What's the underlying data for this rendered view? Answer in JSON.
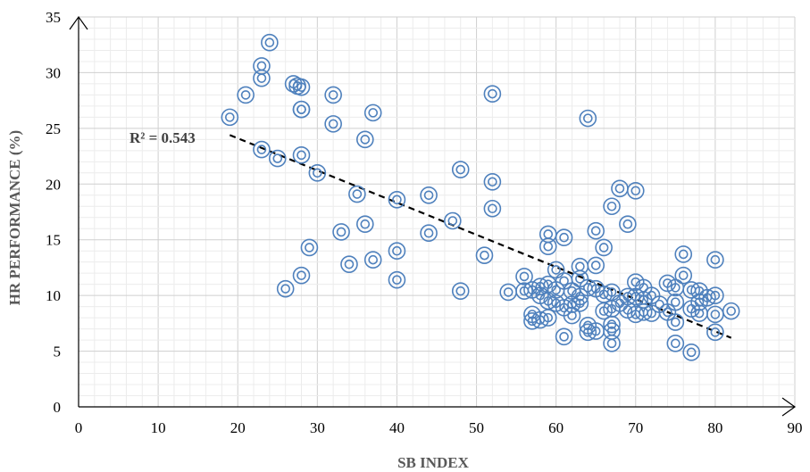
{
  "chart_data": {
    "type": "scatter",
    "title": "",
    "xlabel": "SB INDEX",
    "ylabel": "HR PERFORMANCE (%)",
    "xlim": [
      0,
      90
    ],
    "ylim": [
      0,
      35
    ],
    "x_ticks": [
      "0",
      "10",
      "20",
      "30",
      "40",
      "50",
      "60",
      "70",
      "80",
      "90"
    ],
    "y_ticks": [
      "0",
      "5",
      "10",
      "15",
      "20",
      "25",
      "30",
      "35"
    ],
    "grid": "major and minor gridlines",
    "marker_color": "#4f81bd",
    "trendline": {
      "type": "linear",
      "x": [
        19,
        82
      ],
      "y": [
        24.4,
        6.2
      ],
      "style": "dashed",
      "color": "#000000"
    },
    "annotation": "R² = 0.543",
    "points": [
      [
        19,
        26
      ],
      [
        21,
        28
      ],
      [
        23,
        30.6
      ],
      [
        23,
        29.5
      ],
      [
        24,
        32.7
      ],
      [
        23,
        23.1
      ],
      [
        25,
        22.3
      ],
      [
        26,
        10.6
      ],
      [
        27,
        29
      ],
      [
        27.5,
        28.8
      ],
      [
        28,
        28.7
      ],
      [
        28,
        26.7
      ],
      [
        28,
        26.7
      ],
      [
        28,
        22.6
      ],
      [
        28,
        11.8
      ],
      [
        29,
        14.3
      ],
      [
        30,
        21
      ],
      [
        32,
        28
      ],
      [
        32,
        25.4
      ],
      [
        33,
        15.7
      ],
      [
        34,
        12.8
      ],
      [
        35,
        19.1
      ],
      [
        36,
        24
      ],
      [
        36,
        16.4
      ],
      [
        37,
        26.4
      ],
      [
        37,
        13.2
      ],
      [
        40,
        18.6
      ],
      [
        40,
        14
      ],
      [
        40,
        11.4
      ],
      [
        44,
        19
      ],
      [
        44,
        15.6
      ],
      [
        47,
        16.7
      ],
      [
        48,
        21.3
      ],
      [
        48,
        10.4
      ],
      [
        51,
        13.6
      ],
      [
        52,
        28.1
      ],
      [
        52,
        20.2
      ],
      [
        52,
        17.8
      ],
      [
        54,
        10.3
      ],
      [
        56,
        11.7
      ],
      [
        56,
        10.4
      ],
      [
        57,
        10.5
      ],
      [
        57,
        8.3
      ],
      [
        57,
        7.7
      ],
      [
        58,
        10.8
      ],
      [
        58,
        10
      ],
      [
        58,
        7.8
      ],
      [
        59,
        15.5
      ],
      [
        59,
        14.4
      ],
      [
        59,
        11
      ],
      [
        59,
        9.5
      ],
      [
        59,
        8
      ],
      [
        60,
        12.3
      ],
      [
        60,
        10.5
      ],
      [
        60,
        9.3
      ],
      [
        61,
        15.2
      ],
      [
        61,
        11.3
      ],
      [
        61,
        8.9
      ],
      [
        61,
        6.3
      ],
      [
        62,
        10.4
      ],
      [
        62,
        9.2
      ],
      [
        62,
        8.2
      ],
      [
        63,
        12.6
      ],
      [
        63,
        11.5
      ],
      [
        63,
        9.9
      ],
      [
        63,
        9.3
      ],
      [
        64,
        25.9
      ],
      [
        64,
        10.7
      ],
      [
        64,
        7.3
      ],
      [
        64,
        6.7
      ],
      [
        65,
        15.8
      ],
      [
        65,
        12.7
      ],
      [
        65,
        10.6
      ],
      [
        65,
        6.8
      ],
      [
        66,
        14.3
      ],
      [
        66,
        10.1
      ],
      [
        66,
        8.6
      ],
      [
        67,
        18
      ],
      [
        67,
        10.3
      ],
      [
        67,
        8.8
      ],
      [
        67,
        7.4
      ],
      [
        67,
        6.8
      ],
      [
        67,
        5.7
      ],
      [
        68,
        19.6
      ],
      [
        68,
        9.3
      ],
      [
        69,
        16.4
      ],
      [
        69,
        9.9
      ],
      [
        69,
        8.7
      ],
      [
        70,
        19.4
      ],
      [
        70,
        11.2
      ],
      [
        70,
        9.9
      ],
      [
        70,
        8.3
      ],
      [
        71,
        10.7
      ],
      [
        71,
        9.6
      ],
      [
        71,
        8.5
      ],
      [
        72,
        10
      ],
      [
        72,
        8.4
      ],
      [
        73,
        9.2
      ],
      [
        74,
        11.1
      ],
      [
        74,
        8.5
      ],
      [
        75,
        10.7
      ],
      [
        75,
        9.4
      ],
      [
        75,
        7.6
      ],
      [
        75,
        5.7
      ],
      [
        76,
        13.7
      ],
      [
        76,
        11.8
      ],
      [
        77,
        10.5
      ],
      [
        77,
        8.8
      ],
      [
        77,
        4.9
      ],
      [
        78,
        10.4
      ],
      [
        78,
        9.4
      ],
      [
        78,
        8.4
      ],
      [
        79,
        9.8
      ],
      [
        80,
        13.2
      ],
      [
        80,
        10
      ],
      [
        80,
        8.3
      ],
      [
        80,
        6.7
      ],
      [
        82,
        8.6
      ]
    ]
  }
}
